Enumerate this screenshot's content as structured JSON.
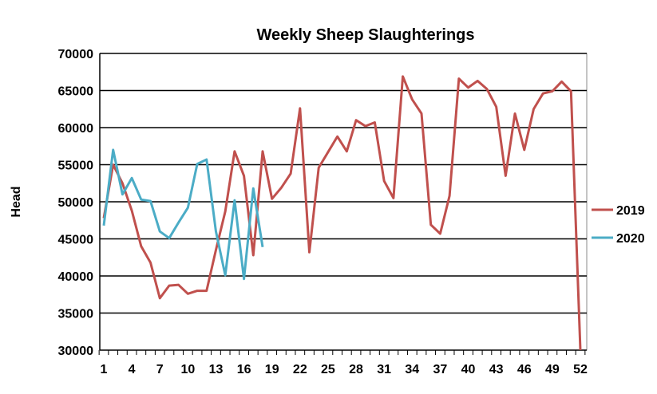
{
  "chart_data": {
    "type": "line",
    "title": "Weekly Sheep Slaughterings",
    "xlabel": "",
    "ylabel": "Head",
    "ylim": [
      30000,
      70000
    ],
    "yticks": [
      30000,
      35000,
      40000,
      45000,
      50000,
      55000,
      60000,
      65000,
      70000
    ],
    "xlim": [
      1,
      52
    ],
    "xticks": [
      1,
      4,
      7,
      10,
      13,
      16,
      19,
      22,
      25,
      28,
      31,
      34,
      37,
      40,
      43,
      46,
      49,
      52
    ],
    "grid": "horizontal",
    "legend": "right",
    "series": [
      {
        "name": "2019",
        "color": "#c0504d",
        "x": [
          1,
          2,
          3,
          4,
          5,
          6,
          7,
          8,
          9,
          10,
          11,
          12,
          13,
          14,
          15,
          16,
          17,
          18,
          19,
          20,
          21,
          22,
          23,
          24,
          25,
          26,
          27,
          28,
          29,
          30,
          31,
          32,
          33,
          34,
          35,
          36,
          37,
          38,
          39,
          40,
          41,
          42,
          43,
          44,
          45,
          46,
          47,
          48,
          49,
          50,
          51,
          52
        ],
        "values": [
          47800,
          55000,
          52500,
          48800,
          44000,
          41800,
          37000,
          38700,
          38800,
          37600,
          38000,
          38000,
          43500,
          48700,
          56800,
          53500,
          42800,
          56800,
          50400,
          51900,
          53800,
          62600,
          43200,
          54600,
          56700,
          58800,
          56800,
          61000,
          60200,
          60700,
          52800,
          50500,
          66900,
          63800,
          61900,
          46900,
          45700,
          50800,
          66600,
          65400,
          66300,
          65200,
          62800,
          53500,
          61900,
          57000,
          62500,
          64600,
          64900,
          66200,
          64900,
          30000
        ]
      },
      {
        "name": "2020",
        "color": "#4bacc6",
        "x": [
          1,
          2,
          3,
          4,
          5,
          6,
          7,
          8,
          9,
          10,
          11,
          12,
          13,
          14,
          15,
          16,
          17,
          18
        ],
        "values": [
          46800,
          57000,
          51000,
          53200,
          50300,
          50100,
          46000,
          45100,
          47200,
          49200,
          55100,
          55700,
          46000,
          40100,
          50200,
          39600,
          51800,
          43900
        ]
      }
    ]
  }
}
